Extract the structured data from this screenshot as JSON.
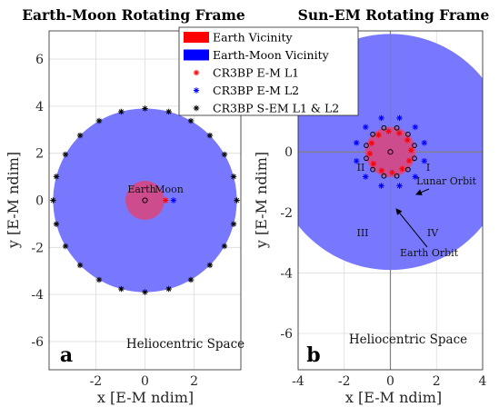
{
  "chart_data": [
    {
      "type": "scatter",
      "title": "Earth-Moon Rotating Frame",
      "xlabel": "x [E-M ndim]",
      "ylabel": "y [E-M ndim]",
      "xlim": [
        -3.9,
        3.9
      ],
      "ylim": [
        -7.2,
        7.2
      ],
      "xticks": [
        -2,
        0,
        2
      ],
      "yticks": [
        -6,
        -4,
        -2,
        0,
        2,
        4,
        6
      ],
      "grid": true,
      "regions": [
        {
          "name": "Earth-Moon Vicinity",
          "shape": "circle",
          "center": [
            0,
            0
          ],
          "radius": 3.9
        },
        {
          "name": "Earth Vicinity",
          "shape": "circle",
          "center": [
            0,
            0
          ],
          "radius": 0.83
        }
      ],
      "series": [
        {
          "name": "CR3BP E-M L1",
          "x": [
            0.84
          ],
          "y": [
            0
          ]
        },
        {
          "name": "CR3BP E-M L2",
          "x": [
            1.16
          ],
          "y": [
            0
          ]
        },
        {
          "name": "CR3BP S-EM L1 & L2",
          "angles_deg": [
            0,
            15,
            30,
            45,
            60,
            75,
            90,
            105,
            120,
            135,
            150,
            165,
            180,
            195,
            210,
            225,
            240,
            255,
            270,
            285,
            300,
            315,
            330,
            345
          ],
          "radius": 3.9
        }
      ],
      "annotations": [
        "Earth",
        "Moon",
        "Heliocentric Space",
        "a"
      ]
    },
    {
      "type": "scatter",
      "title": "Sun-EM Rotating Frame",
      "xlabel": "x [E-M ndim]",
      "ylabel": "y [E-M ndim]",
      "xlim": [
        -4,
        4
      ],
      "ylim": [
        -7.2,
        4
      ],
      "xticks": [
        -4,
        -2,
        0,
        2,
        4
      ],
      "yticks": [
        -6,
        -4,
        -2,
        0,
        2
      ],
      "grid": true,
      "regions": [
        {
          "name": "Earth-Moon Vicinity",
          "shape": "circle",
          "center": [
            0,
            0
          ],
          "radius": 3.9
        },
        {
          "name": "Earth Vicinity",
          "shape": "circle",
          "center": [
            0,
            0
          ],
          "radius": 0.83
        }
      ],
      "series": [
        {
          "name": "CR3BP E-M L1",
          "ring_radius": 0.84
        },
        {
          "name": "CR3BP E-M L2",
          "ring_radius": 1.16
        }
      ],
      "annotations": [
        "I",
        "II",
        "III",
        "IV",
        "Lunar Orbit",
        "Earth Orbit",
        "Heliocentric Space",
        "b"
      ]
    }
  ],
  "legend": {
    "placement": "top-center",
    "entries": [
      {
        "label": "Earth Vicinity",
        "color": "#ff0000",
        "marker": "patch"
      },
      {
        "label": "Earth-Moon Vicinity",
        "color": "#0000ff",
        "marker": "patch"
      },
      {
        "label": "CR3BP E-M L1",
        "color": "#ff0000",
        "marker": "*"
      },
      {
        "label": "CR3BP E-M L2",
        "color": "#0000ff",
        "marker": "*"
      },
      {
        "label": "CR3BP S-EM L1 & L2",
        "color": "#000000",
        "marker": "*"
      }
    ]
  },
  "colors": {
    "earth_moon_vicinity": "#7878ff",
    "earth_vicinity": "#cc4c8e",
    "axis_line": "#808080"
  }
}
